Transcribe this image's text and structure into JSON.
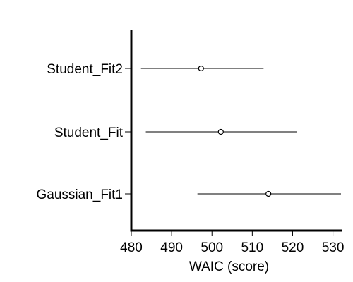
{
  "chart_data": {
    "type": "dotplot-interval",
    "xlabel": "WAIC (score)",
    "xlim": [
      480,
      532
    ],
    "xticks": [
      480,
      490,
      500,
      510,
      520,
      530
    ],
    "categories": [
      "Student_Fit2",
      "Student_Fit",
      "Gaussian_Fit1"
    ],
    "points": [
      {
        "label": "Student_Fit2",
        "value": 497.3,
        "low": 482.4,
        "high": 512.8
      },
      {
        "label": "Student_Fit",
        "value": 502.2,
        "low": 483.6,
        "high": 521.0
      },
      {
        "label": "Gaussian_Fit1",
        "value": 514.0,
        "low": 496.4,
        "high": 532.0
      }
    ],
    "grid": false,
    "colors": {
      "line": "#000000",
      "point_fill": "#ffffff"
    }
  }
}
